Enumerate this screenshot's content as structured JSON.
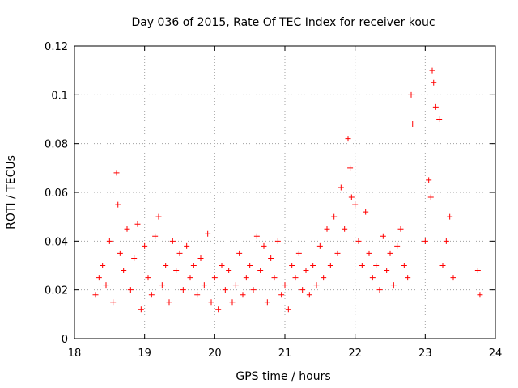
{
  "chart_data": {
    "type": "scatter",
    "title": "Day 036 of 2015, Rate Of TEC Index for receiver kouc",
    "xlabel": "GPS time / hours",
    "ylabel": "ROTI / TECUs",
    "xlim": [
      18,
      24
    ],
    "ylim": [
      0,
      0.12
    ],
    "grid": true,
    "marker": "+",
    "colors": {
      "points": "#ff0000",
      "grid": "#a0a0a0",
      "axes": "#000000"
    },
    "x_ticks": [
      "18",
      "19",
      "20",
      "21",
      "22",
      "23",
      "24"
    ],
    "y_ticks": [
      "0",
      "0.02",
      "0.04",
      "0.06",
      "0.08",
      "0.1",
      "0.12"
    ],
    "series": [
      {
        "name": "ROTI",
        "x": [
          18.3,
          18.35,
          18.4,
          18.45,
          18.5,
          18.55,
          18.6,
          18.62,
          18.65,
          18.7,
          18.75,
          18.8,
          18.85,
          18.9,
          18.95,
          19.0,
          19.05,
          19.1,
          19.15,
          19.2,
          19.25,
          19.3,
          19.35,
          19.4,
          19.45,
          19.5,
          19.55,
          19.6,
          19.65,
          19.7,
          19.75,
          19.8,
          19.85,
          19.9,
          19.95,
          20.0,
          20.05,
          20.1,
          20.15,
          20.2,
          20.25,
          20.3,
          20.35,
          20.4,
          20.45,
          20.5,
          20.55,
          20.6,
          20.65,
          20.7,
          20.75,
          20.8,
          20.85,
          20.9,
          20.95,
          21.0,
          21.05,
          21.1,
          21.15,
          21.2,
          21.25,
          21.3,
          21.35,
          21.4,
          21.45,
          21.5,
          21.55,
          21.6,
          21.65,
          21.7,
          21.75,
          21.8,
          21.85,
          21.9,
          21.93,
          21.95,
          22.0,
          22.05,
          22.1,
          22.15,
          22.2,
          22.25,
          22.3,
          22.35,
          22.4,
          22.45,
          22.5,
          22.55,
          22.6,
          22.65,
          22.7,
          22.75,
          22.8,
          22.82,
          23.0,
          23.05,
          23.08,
          23.1,
          23.12,
          23.15,
          23.2,
          23.25,
          23.3,
          23.35,
          23.4,
          23.75,
          23.78
        ],
        "y": [
          0.018,
          0.025,
          0.03,
          0.022,
          0.04,
          0.015,
          0.068,
          0.055,
          0.035,
          0.028,
          0.045,
          0.02,
          0.033,
          0.047,
          0.012,
          0.038,
          0.025,
          0.018,
          0.042,
          0.05,
          0.022,
          0.03,
          0.015,
          0.04,
          0.028,
          0.035,
          0.02,
          0.038,
          0.025,
          0.03,
          0.018,
          0.033,
          0.022,
          0.043,
          0.015,
          0.025,
          0.012,
          0.03,
          0.02,
          0.028,
          0.015,
          0.022,
          0.035,
          0.018,
          0.025,
          0.03,
          0.02,
          0.042,
          0.028,
          0.038,
          0.015,
          0.033,
          0.025,
          0.04,
          0.018,
          0.022,
          0.012,
          0.03,
          0.025,
          0.035,
          0.02,
          0.028,
          0.018,
          0.03,
          0.022,
          0.038,
          0.025,
          0.045,
          0.03,
          0.05,
          0.035,
          0.062,
          0.045,
          0.082,
          0.07,
          0.058,
          0.055,
          0.04,
          0.03,
          0.052,
          0.035,
          0.025,
          0.03,
          0.02,
          0.042,
          0.028,
          0.035,
          0.022,
          0.038,
          0.045,
          0.03,
          0.025,
          0.1,
          0.088,
          0.04,
          0.065,
          0.058,
          0.11,
          0.105,
          0.095,
          0.09,
          0.03,
          0.04,
          0.05,
          0.025,
          0.028,
          0.018
        ]
      }
    ]
  }
}
